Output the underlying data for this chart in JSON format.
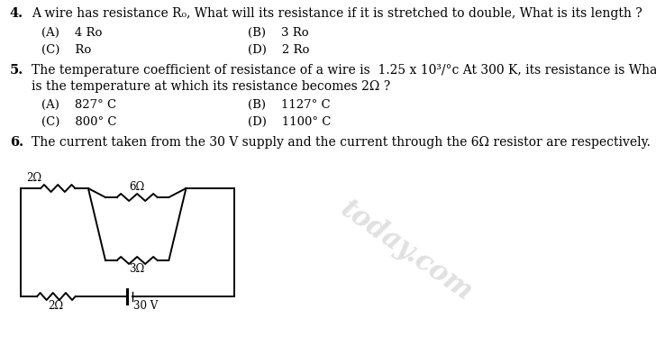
{
  "bg_color": "#ffffff",
  "text_color": "#000000",
  "q4_number": "4.",
  "q4_text": "A wire has resistance R₀, What will its resistance if it is stretched to double, What is its length ?",
  "q4_A": "(A)    4 Ro",
  "q4_B": "(B)    3 Ro",
  "q4_C": "(C)    Ro",
  "q4_D": "(D)    2 Ro",
  "q5_number": "5.",
  "q5_text1": "The temperature coefficient of resistance of a wire is  1.25 x 10³/°c At 300 K, its resistance is What",
  "q5_text2": "is the temperature at which its resistance becomes 2Ω ?",
  "q5_A": "(A)    827° C",
  "q5_B": "(B)    1127° C",
  "q5_C": "(C)    800° C",
  "q5_D": "(D)    1100° C",
  "q6_number": "6.",
  "q6_text": "The current taken from the 30 V supply and the current through the 6Ω resistor are respectively.",
  "watermark": "today.com",
  "wm_color": "#c8c8c8",
  "wm_alpha": 0.55
}
